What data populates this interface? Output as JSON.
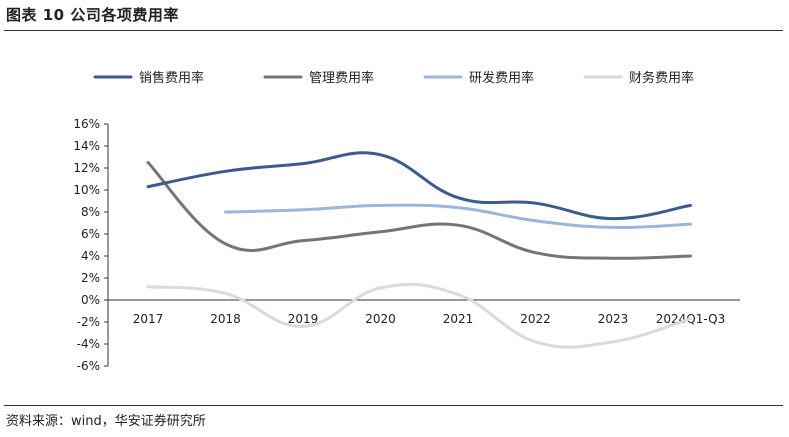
{
  "header": {
    "title": "图表 10 公司各项费用率"
  },
  "footer": {
    "source": "资料来源：wind，华安证券研究所"
  },
  "chart_data": {
    "type": "line",
    "title": "",
    "xlabel": "",
    "ylabel": "",
    "categories": [
      "2017",
      "2018",
      "2019",
      "2020",
      "2021",
      "2022",
      "2023",
      "2024Q1-Q3"
    ],
    "ylim": [
      -6,
      16
    ],
    "yticks": [
      -6,
      -4,
      -2,
      0,
      2,
      4,
      6,
      8,
      10,
      12,
      14,
      16
    ],
    "ytick_labels": [
      "-6%",
      "-4%",
      "-2%",
      "0%",
      "2%",
      "4%",
      "6%",
      "8%",
      "10%",
      "12%",
      "14%",
      "16%"
    ],
    "grid": false,
    "legend_position": "top",
    "smooth": true,
    "series": [
      {
        "name": "销售费用率",
        "color": "#3b5b8c",
        "values": [
          10.3,
          11.7,
          12.4,
          13.2,
          9.3,
          8.8,
          7.4,
          8.6
        ]
      },
      {
        "name": "管理费用率",
        "color": "#757575",
        "values": [
          12.5,
          5.1,
          5.4,
          6.2,
          6.8,
          4.3,
          3.8,
          4.0
        ]
      },
      {
        "name": "研发费用率",
        "color": "#9db5da",
        "values": [
          null,
          8.0,
          8.2,
          8.6,
          8.4,
          7.2,
          6.6,
          6.9
        ]
      },
      {
        "name": "财务费用率",
        "color": "#dadada",
        "values": [
          1.2,
          0.6,
          -2.4,
          1.1,
          0.5,
          -3.8,
          -3.8,
          -1.7
        ]
      }
    ]
  }
}
